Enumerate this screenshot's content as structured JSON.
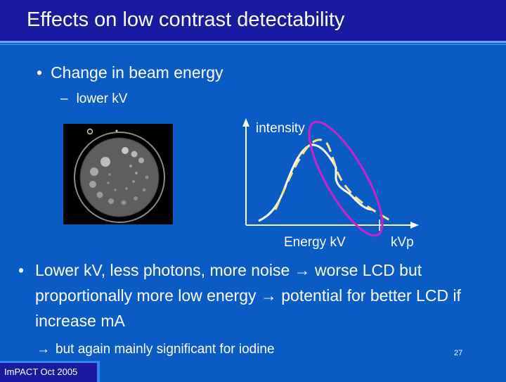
{
  "title": "Effects on low contrast detectability",
  "bullets": {
    "main1": "Change in beam energy",
    "sub1": "lower kV",
    "main2": "Lower kV, less photons, more noise → worse LCD but proportionally more low energy → potential for better LCD if increase mA",
    "note": "but again mainly significant for iodine"
  },
  "symbols": {
    "bullet": "•",
    "dash": "–",
    "arrow": "→"
  },
  "diagram": {
    "y_axis_label": "intensity",
    "x_axis_label": "Energy kV",
    "kvp_label": "kVp",
    "colors": {
      "solid_curve": "#ffffff",
      "dashed_curve": "#f2e68a",
      "highlight_ellipse": "#cc22cc",
      "axes": "#ffffff"
    }
  },
  "phantom_image": "ct-phantom-image",
  "page_number": "27",
  "footer": "ImPACT Oct 2005",
  "colors": {
    "background": "#0a5cc4",
    "title_bar": "#1a1aa0",
    "text": "#ffffff"
  }
}
